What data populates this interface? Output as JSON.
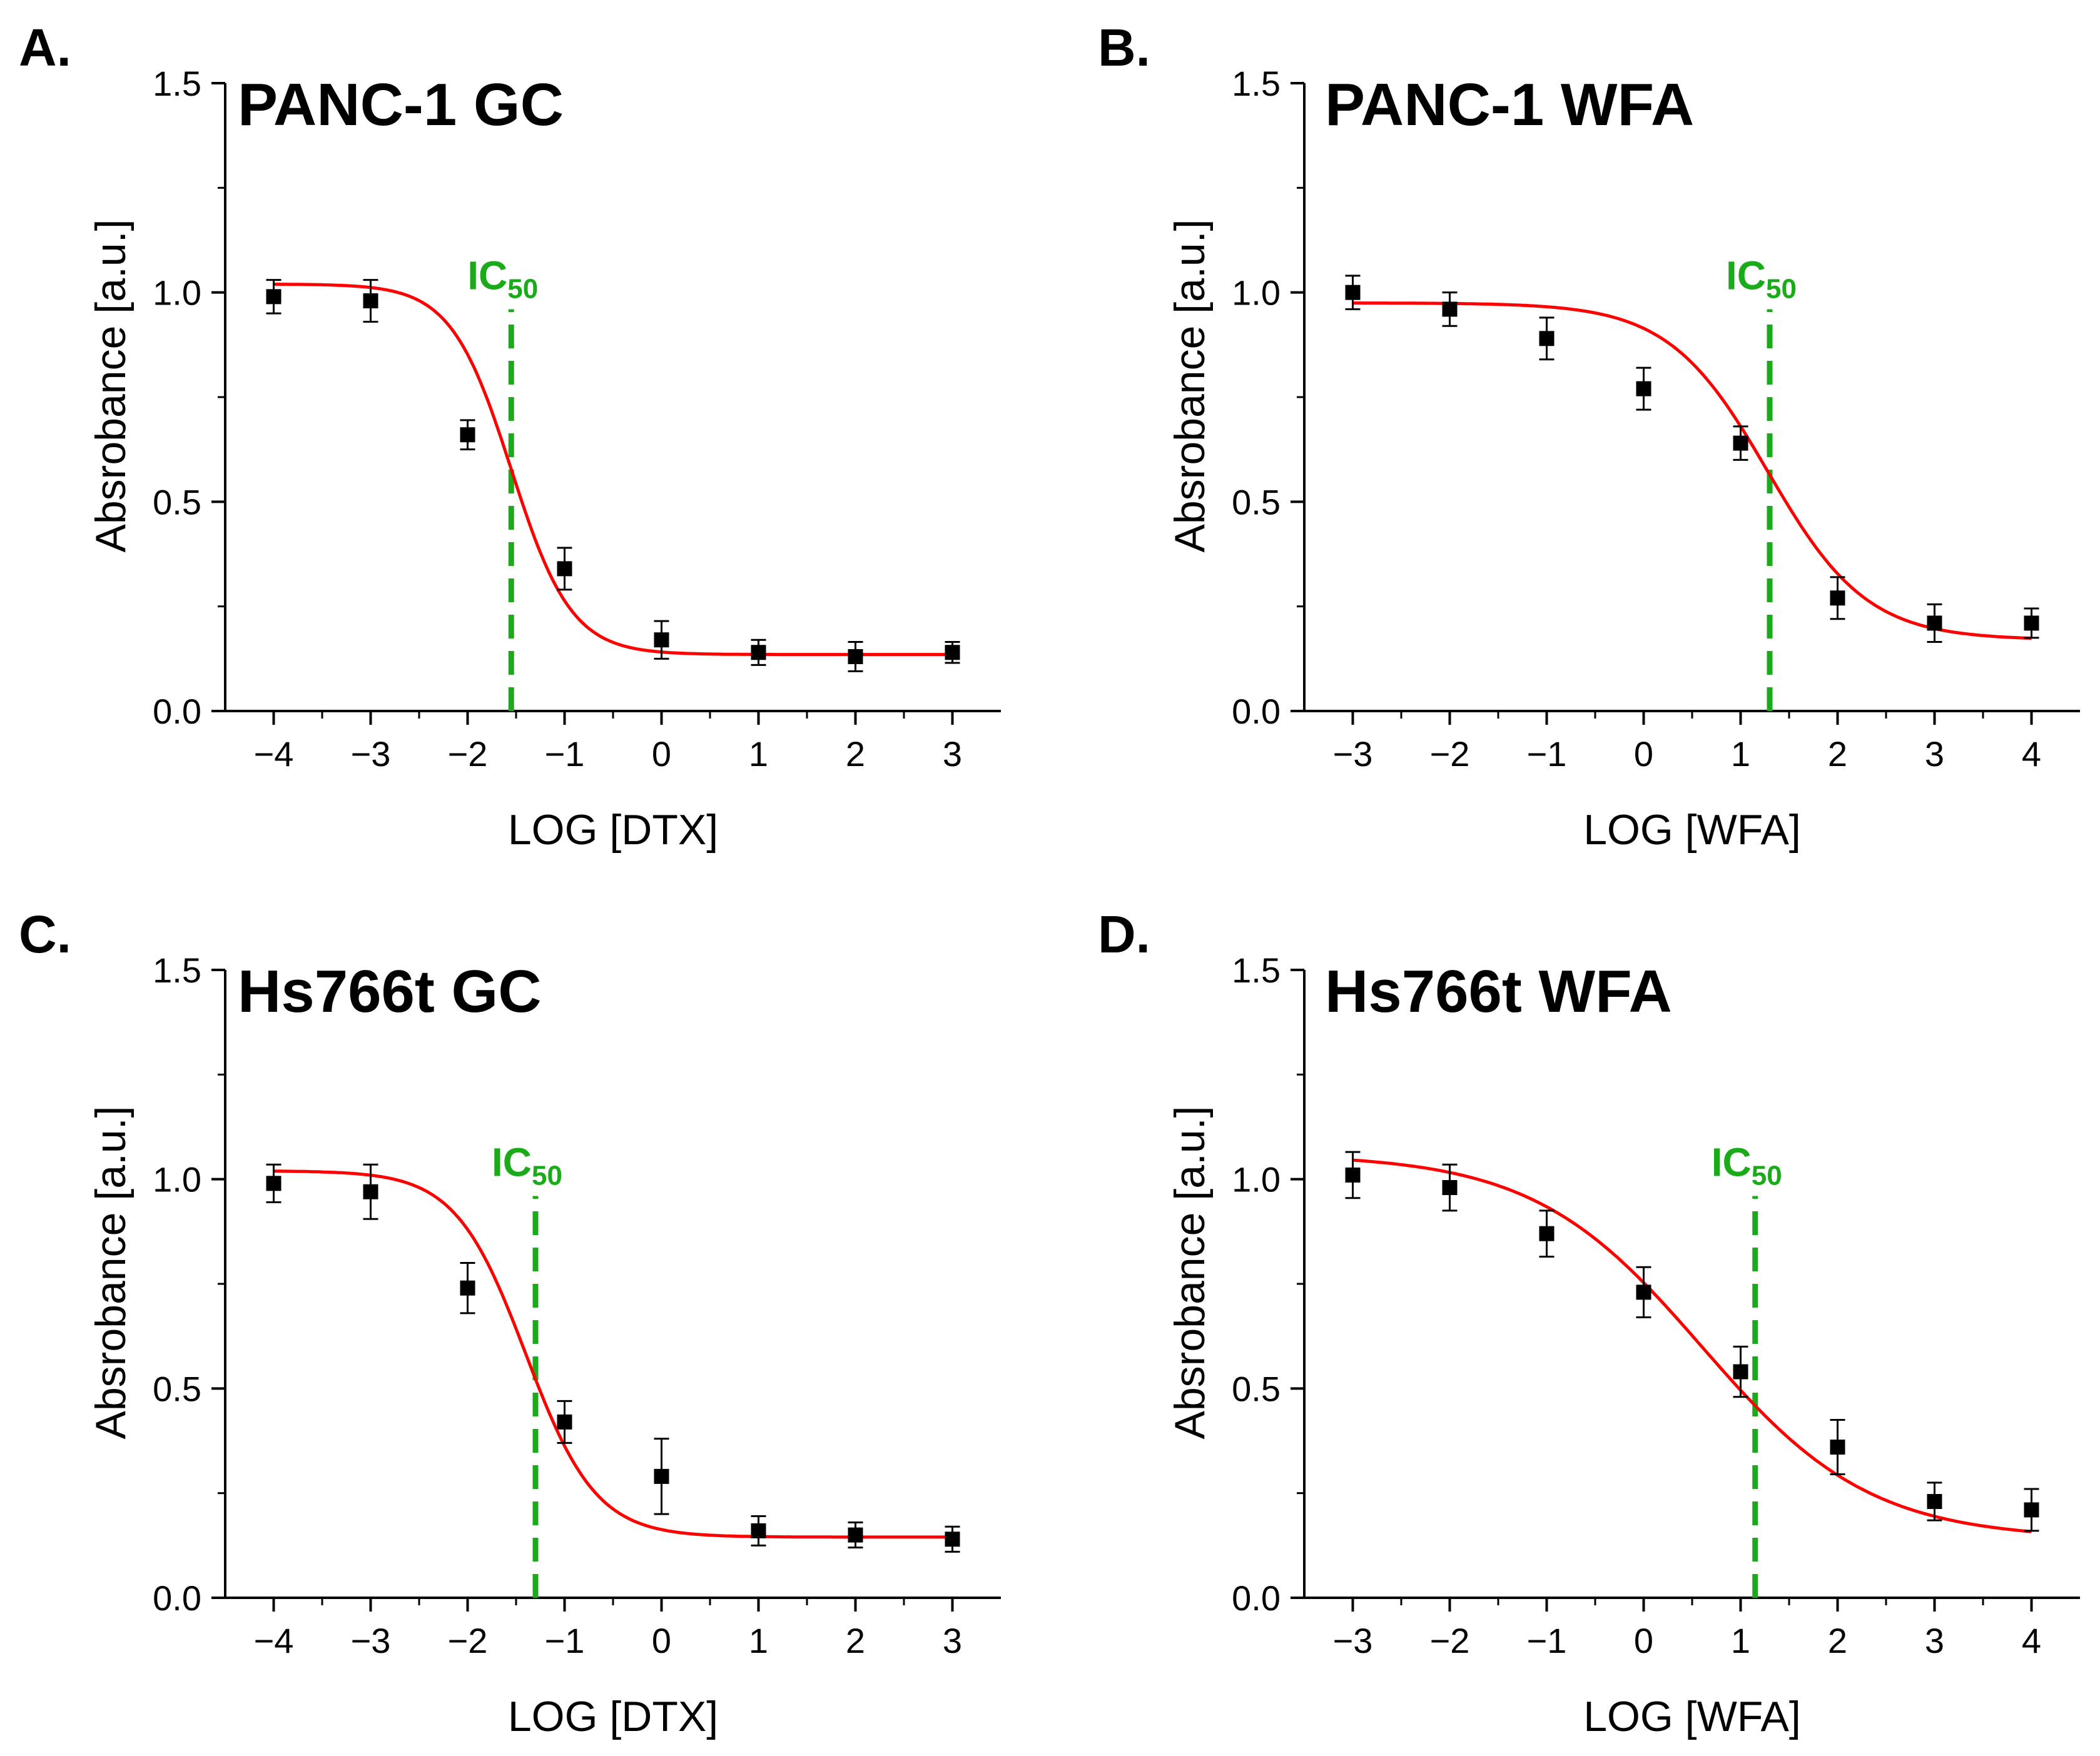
{
  "colors": {
    "fit": "#ff0000",
    "ic50": "#1aaa1a",
    "points": "#000000",
    "axes": "#000000"
  },
  "chart_data": [
    {
      "panel": "A.",
      "type": "scatter",
      "title": "PANC-1 GC",
      "xlabel": "LOG [DTX]",
      "ylabel": "Absrobance [a.u.]",
      "xlim": [
        -4.5,
        3.5
      ],
      "ylim": [
        0,
        1.5
      ],
      "xticks": [
        -4,
        -3,
        -2,
        -1,
        0,
        1,
        2,
        3
      ],
      "yticks": [
        0,
        0.5,
        1.0,
        1.5
      ],
      "xtick_labels": [
        "−4",
        "−3",
        "−2",
        "−1",
        "0",
        "1",
        "2",
        "3"
      ],
      "ytick_labels": [
        "0.0",
        "0.5",
        "1.0",
        "1.5"
      ],
      "x": [
        -4,
        -3,
        -2,
        -1,
        0,
        1,
        2,
        3
      ],
      "y": [
        0.99,
        0.98,
        0.66,
        0.34,
        0.17,
        0.14,
        0.13,
        0.14
      ],
      "yerr": [
        0.04,
        0.05,
        0.035,
        0.05,
        0.045,
        0.03,
        0.035,
        0.025
      ],
      "fit": {
        "model": "logistic",
        "top": 1.02,
        "bottom": 0.135,
        "logIC50": -1.55,
        "hill": 1.4
      },
      "ic50": {
        "label": "IC",
        "sub": "50",
        "x": -1.55,
        "y_from": 0,
        "y_to": 0.96
      }
    },
    {
      "panel": "B.",
      "type": "scatter",
      "title": "PANC-1 WFA",
      "xlabel": "LOG [WFA]",
      "ylabel": "Absrobance [a.u.]",
      "xlim": [
        -3.5,
        4.5
      ],
      "ylim": [
        0,
        1.5
      ],
      "xticks": [
        -3,
        -2,
        -1,
        0,
        1,
        2,
        3,
        4
      ],
      "yticks": [
        0,
        0.5,
        1.0,
        1.5
      ],
      "xtick_labels": [
        "−3",
        "−2",
        "−1",
        "0",
        "1",
        "2",
        "3",
        "4"
      ],
      "ytick_labels": [
        "0.0",
        "0.5",
        "1.0",
        "1.5"
      ],
      "x": [
        -3,
        -2,
        -1,
        0,
        1,
        2,
        3,
        4
      ],
      "y": [
        1.0,
        0.96,
        0.89,
        0.77,
        0.64,
        0.27,
        0.21,
        0.21
      ],
      "yerr": [
        0.04,
        0.04,
        0.05,
        0.05,
        0.04,
        0.05,
        0.045,
        0.035
      ],
      "fit": {
        "model": "logistic",
        "top": 0.975,
        "bottom": 0.17,
        "logIC50": 1.28,
        "hill": 0.85
      },
      "ic50": {
        "label": "IC",
        "sub": "50",
        "x": 1.3,
        "y_from": 0,
        "y_to": 0.96
      }
    },
    {
      "panel": "C.",
      "type": "scatter",
      "title": "Hs766t GC",
      "xlabel": "LOG [DTX]",
      "ylabel": "Absrobance [a.u.]",
      "xlim": [
        -4.5,
        3.5
      ],
      "ylim": [
        0,
        1.5
      ],
      "xticks": [
        -4,
        -3,
        -2,
        -1,
        0,
        1,
        2,
        3
      ],
      "yticks": [
        0,
        0.5,
        1.0,
        1.5
      ],
      "xtick_labels": [
        "−4",
        "−3",
        "−2",
        "−1",
        "0",
        "1",
        "2",
        "3"
      ],
      "ytick_labels": [
        "0.0",
        "0.5",
        "1.0",
        "1.5"
      ],
      "x": [
        -4,
        -3,
        -2,
        -1,
        0,
        1,
        2,
        3
      ],
      "y": [
        0.99,
        0.97,
        0.74,
        0.42,
        0.29,
        0.16,
        0.15,
        0.14
      ],
      "yerr": [
        0.045,
        0.065,
        0.06,
        0.05,
        0.09,
        0.035,
        0.03,
        0.03
      ],
      "fit": {
        "model": "logistic",
        "top": 1.02,
        "bottom": 0.145,
        "logIC50": -1.4,
        "hill": 1.2
      },
      "ic50": {
        "label": "IC",
        "sub": "50",
        "x": -1.3,
        "y_from": 0,
        "y_to": 0.96
      }
    },
    {
      "panel": "D.",
      "type": "scatter",
      "title": "Hs766t WFA",
      "xlabel": "LOG [WFA]",
      "ylabel": "Absrobance [a.u.]",
      "xlim": [
        -3.5,
        4.5
      ],
      "ylim": [
        0,
        1.5
      ],
      "xticks": [
        -3,
        -2,
        -1,
        0,
        1,
        2,
        3,
        4
      ],
      "yticks": [
        0,
        0.5,
        1.0,
        1.5
      ],
      "xtick_labels": [
        "−3",
        "−2",
        "−1",
        "0",
        "1",
        "2",
        "3",
        "4"
      ],
      "ytick_labels": [
        "0.0",
        "0.5",
        "1.0",
        "1.5"
      ],
      "x": [
        -3,
        -2,
        -1,
        0,
        1,
        2,
        3,
        4
      ],
      "y": [
        1.01,
        0.98,
        0.87,
        0.73,
        0.54,
        0.36,
        0.23,
        0.21
      ],
      "yerr": [
        0.055,
        0.055,
        0.055,
        0.06,
        0.06,
        0.065,
        0.045,
        0.05
      ],
      "fit": {
        "model": "logistic",
        "top": 1.06,
        "bottom": 0.14,
        "logIC50": 0.6,
        "hill": 0.5
      },
      "ic50": {
        "label": "IC",
        "sub": "50",
        "x": 1.15,
        "y_from": 0,
        "y_to": 0.96
      }
    }
  ]
}
